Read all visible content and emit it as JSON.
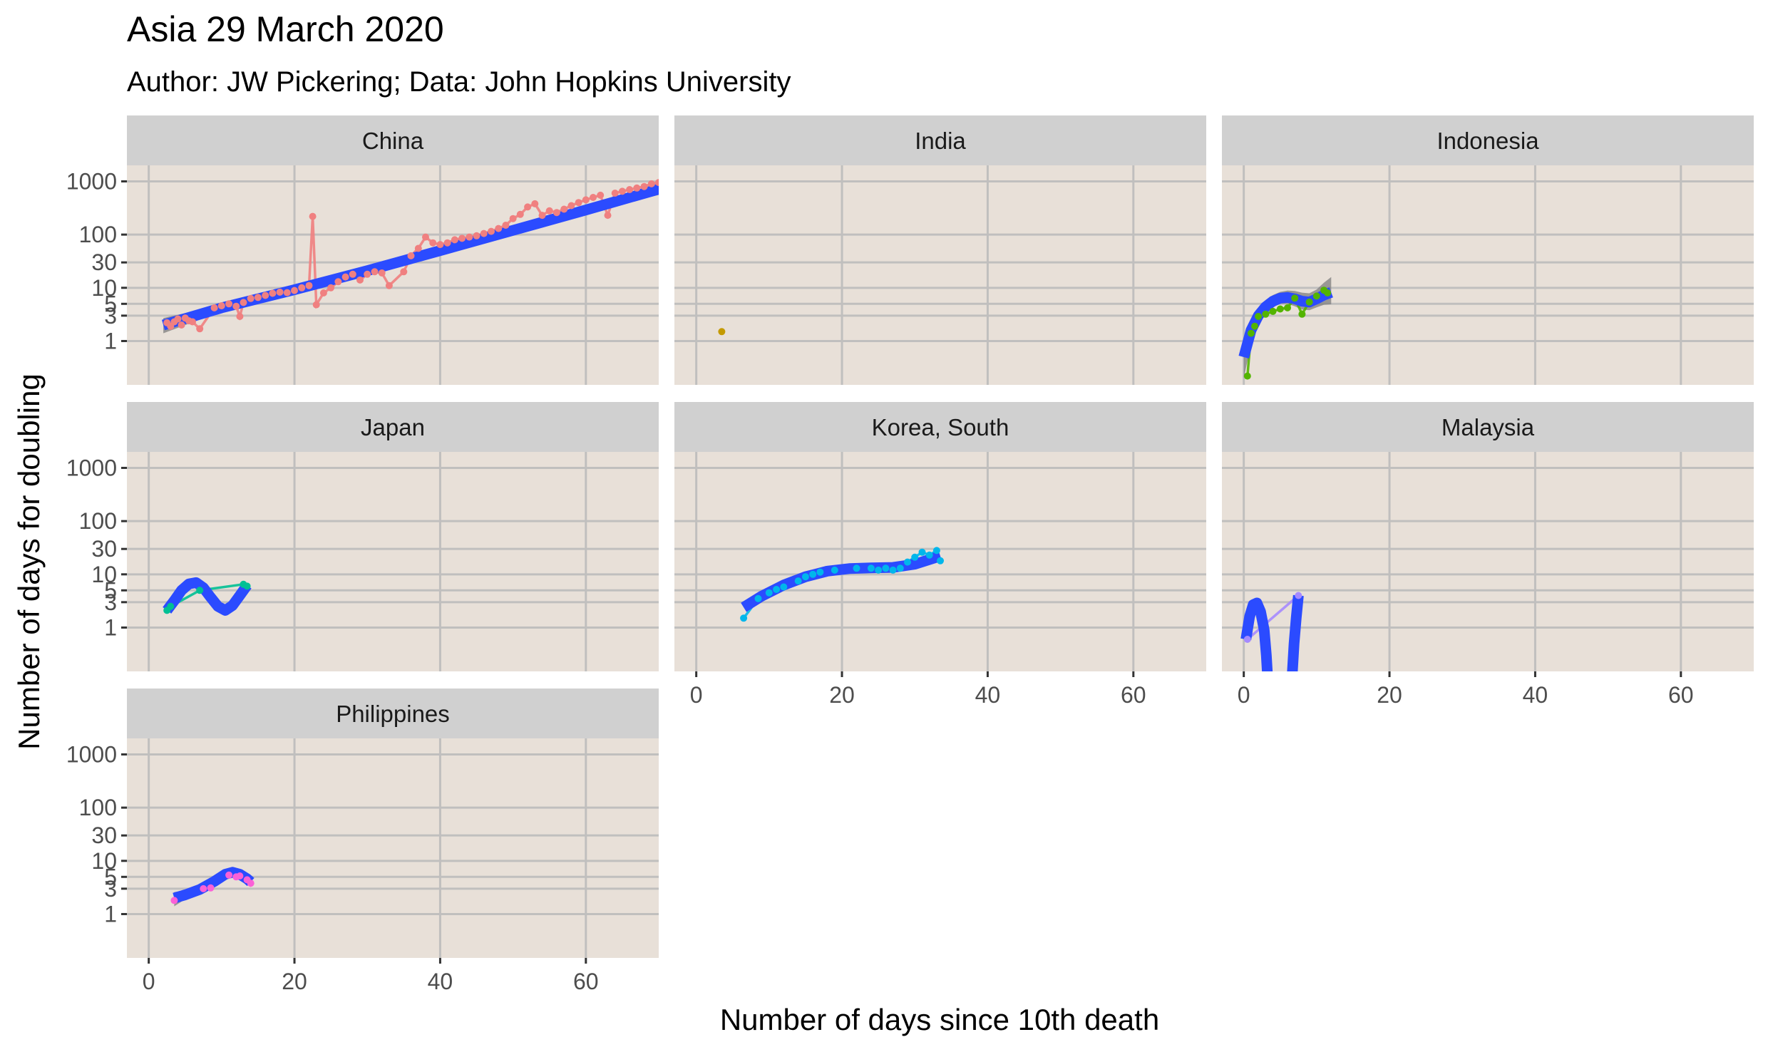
{
  "title": "Asia 29 March 2020",
  "subtitle": "Author: JW Pickering; Data: John Hopkins University",
  "colors": {
    "panel_bg": "#e8e0d8",
    "strip_bg": "#d0d0d0",
    "grid": "#c0bfbe",
    "smooth_line": "#2b4bff",
    "ribbon": "#7f7f7f"
  },
  "chart_data": {
    "type": "line",
    "title": "Asia 29 March 2020",
    "subtitle": "Author: JW Pickering; Data: John Hopkins University",
    "xlabel": "Number of days since 10th death",
    "ylabel": "Number of days for doubling",
    "xlim": [
      -3,
      70
    ],
    "ylim": [
      0.15,
      2000
    ],
    "y_scale": "log10",
    "x_ticks": [
      0,
      20,
      40,
      60
    ],
    "x_tick_labels": [
      "0",
      "20",
      "40",
      "60"
    ],
    "y_ticks": [
      1,
      3,
      5,
      10,
      30,
      100,
      1000
    ],
    "y_tick_labels": [
      "1",
      "3",
      "5",
      "10",
      "30",
      "100",
      "1000"
    ],
    "grid": true,
    "legend": "none",
    "facets": [
      {
        "name": "China",
        "color": "#f08080",
        "points": [
          [
            2.5,
            2.2
          ],
          [
            3,
            1.9
          ],
          [
            3.5,
            2.3
          ],
          [
            4,
            2.6
          ],
          [
            4.5,
            2.0
          ],
          [
            5,
            2.7
          ],
          [
            5.5,
            2.4
          ],
          [
            6,
            2.3
          ],
          [
            7,
            1.7
          ],
          [
            9,
            4.2
          ],
          [
            10,
            4.6
          ],
          [
            11,
            5.0
          ],
          [
            12,
            4.5
          ],
          [
            12.5,
            2.9
          ],
          [
            13,
            5.3
          ],
          [
            14,
            6.3
          ],
          [
            15,
            6.6
          ],
          [
            16,
            7.2
          ],
          [
            17,
            7.9
          ],
          [
            18,
            8.3
          ],
          [
            19,
            8.1
          ],
          [
            20,
            8.9
          ],
          [
            21,
            10
          ],
          [
            22,
            11
          ],
          [
            22.5,
            220
          ],
          [
            23,
            4.8
          ],
          [
            24,
            8.0
          ],
          [
            25,
            10
          ],
          [
            26,
            13
          ],
          [
            27,
            16
          ],
          [
            28,
            18
          ],
          [
            29,
            14
          ],
          [
            30,
            18
          ],
          [
            31,
            20
          ],
          [
            32,
            19
          ],
          [
            33,
            11
          ],
          [
            35,
            20
          ],
          [
            36,
            40
          ],
          [
            37,
            55
          ],
          [
            38,
            90
          ],
          [
            39,
            70
          ],
          [
            40,
            65
          ],
          [
            41,
            70
          ],
          [
            42,
            80
          ],
          [
            43,
            85
          ],
          [
            44,
            90
          ],
          [
            45,
            95
          ],
          [
            46,
            105
          ],
          [
            47,
            115
          ],
          [
            48,
            130
          ],
          [
            49,
            150
          ],
          [
            50,
            200
          ],
          [
            51,
            240
          ],
          [
            52,
            330
          ],
          [
            53,
            380
          ],
          [
            54,
            230
          ],
          [
            55,
            280
          ],
          [
            56,
            260
          ],
          [
            57,
            300
          ],
          [
            58,
            350
          ],
          [
            59,
            400
          ],
          [
            60,
            450
          ],
          [
            61,
            500
          ],
          [
            62,
            550
          ],
          [
            63,
            230
          ],
          [
            64,
            600
          ],
          [
            65,
            650
          ],
          [
            66,
            700
          ],
          [
            67,
            750
          ],
          [
            68,
            800
          ],
          [
            69,
            900
          ],
          [
            70,
            950
          ],
          [
            71,
            1000
          ]
        ],
        "fit": [
          [
            2,
            2.0
          ],
          [
            10,
            4.2
          ],
          [
            20,
            9.2
          ],
          [
            30,
            21
          ],
          [
            40,
            50
          ],
          [
            50,
            120
          ],
          [
            60,
            290
          ],
          [
            71,
            780
          ]
        ],
        "band": [
          [
            2,
            1.4,
            2.7
          ],
          [
            10,
            3.6,
            4.8
          ],
          [
            20,
            8.3,
            10.2
          ],
          [
            30,
            19,
            23
          ],
          [
            40,
            46,
            54
          ],
          [
            50,
            110,
            130
          ],
          [
            60,
            260,
            320
          ],
          [
            71,
            600,
            1050
          ]
        ]
      },
      {
        "name": "India",
        "color": "#c49a00",
        "points": [
          [
            3.5,
            1.5
          ]
        ],
        "fit": [],
        "band": []
      },
      {
        "name": "Indonesia",
        "color": "#53b400",
        "points": [
          [
            0.5,
            0.22
          ],
          [
            1,
            1.4
          ],
          [
            1.5,
            1.9
          ],
          [
            2,
            2.9
          ],
          [
            3,
            3.2
          ],
          [
            4,
            3.6
          ],
          [
            5,
            4.0
          ],
          [
            6,
            4.2
          ],
          [
            7,
            6.4
          ],
          [
            8,
            3.2
          ],
          [
            9,
            5.4
          ],
          [
            10,
            7.0
          ],
          [
            11,
            9.0
          ],
          [
            11.5,
            8.0
          ]
        ],
        "fit": [
          [
            0,
            0.5
          ],
          [
            1,
            1.6
          ],
          [
            2,
            3.0
          ],
          [
            3,
            4.4
          ],
          [
            4,
            5.6
          ],
          [
            5,
            6.4
          ],
          [
            6,
            6.6
          ],
          [
            7,
            6.2
          ],
          [
            8,
            5.6
          ],
          [
            9,
            5.4
          ],
          [
            10,
            6.2
          ],
          [
            11,
            7.3
          ],
          [
            12,
            8.2
          ]
        ],
        "band": [
          [
            0,
            0.2,
            1.1
          ],
          [
            1,
            0.9,
            2.6
          ],
          [
            2,
            2.1,
            4.1
          ],
          [
            3,
            3.3,
            5.9
          ],
          [
            4,
            4.3,
            7.3
          ],
          [
            5,
            5.0,
            8.4
          ],
          [
            6,
            5.0,
            8.9
          ],
          [
            7,
            4.5,
            8.7
          ],
          [
            8,
            3.9,
            8.1
          ],
          [
            9,
            3.8,
            7.9
          ],
          [
            10,
            4.3,
            9.3
          ],
          [
            11,
            4.8,
            12.5
          ],
          [
            12,
            4.9,
            16.0
          ]
        ]
      },
      {
        "name": "Japan",
        "color": "#00c094",
        "points": [
          [
            2.5,
            2.1
          ],
          [
            3,
            2.5
          ],
          [
            7,
            5.0
          ],
          [
            13,
            6.5
          ],
          [
            13.5,
            6.0
          ]
        ],
        "fit": [
          [
            2.5,
            2.1
          ],
          [
            3.5,
            3.2
          ],
          [
            4.5,
            5.0
          ],
          [
            5.5,
            6.6
          ],
          [
            6.5,
            7.0
          ],
          [
            7.5,
            5.6
          ],
          [
            8.5,
            3.7
          ],
          [
            9.5,
            2.5
          ],
          [
            10.5,
            2.1
          ],
          [
            11.5,
            2.6
          ],
          [
            12.5,
            4.0
          ],
          [
            13.5,
            6.2
          ]
        ],
        "band": []
      },
      {
        "name": "Korea, South",
        "color": "#00b6eb",
        "points": [
          [
            6.5,
            1.5
          ],
          [
            8.5,
            3.5
          ],
          [
            10,
            4.5
          ],
          [
            11,
            5.2
          ],
          [
            12,
            5.8
          ],
          [
            14,
            7.5
          ],
          [
            15,
            9.0
          ],
          [
            16,
            10
          ],
          [
            17,
            11
          ],
          [
            19,
            12
          ],
          [
            22,
            13
          ],
          [
            24,
            13
          ],
          [
            25,
            12
          ],
          [
            26,
            13
          ],
          [
            27,
            12
          ],
          [
            28,
            13
          ],
          [
            29,
            17
          ],
          [
            30,
            21
          ],
          [
            31,
            26
          ],
          [
            32,
            23
          ],
          [
            33,
            28
          ],
          [
            33.5,
            18
          ]
        ],
        "fit": [
          [
            6.5,
            2.4
          ],
          [
            9,
            3.9
          ],
          [
            12,
            6.3
          ],
          [
            15,
            9.0
          ],
          [
            18,
            11.5
          ],
          [
            21,
            12.8
          ],
          [
            24,
            13.2
          ],
          [
            27,
            13.5
          ],
          [
            30,
            15.5
          ],
          [
            33.5,
            22
          ]
        ],
        "band": []
      },
      {
        "name": "Malaysia",
        "color": "#a58aff",
        "points": [
          [
            0.5,
            0.6
          ],
          [
            7.5,
            4.0
          ]
        ],
        "fit": [
          [
            0.3,
            0.6
          ],
          [
            0.8,
            1.6
          ],
          [
            1.3,
            2.7
          ],
          [
            1.8,
            2.9
          ],
          [
            2.3,
            2.0
          ],
          [
            2.8,
            0.9
          ],
          [
            3.1,
            0.3
          ],
          [
            3.3,
            0.1
          ]
        ],
        "fit2": [
          [
            6.6,
            0.1
          ],
          [
            6.9,
            0.5
          ],
          [
            7.2,
            1.5
          ],
          [
            7.5,
            4.0
          ]
        ],
        "band": []
      },
      {
        "name": "Philippines",
        "color": "#fb61d7",
        "points": [
          [
            3.5,
            1.8
          ],
          [
            7.5,
            3.0
          ],
          [
            8.5,
            3.1
          ],
          [
            11,
            5.4
          ],
          [
            12,
            5.0
          ],
          [
            12.5,
            5.2
          ],
          [
            13.5,
            4.4
          ],
          [
            14,
            3.8
          ]
        ],
        "fit": [
          [
            3.5,
            2.0
          ],
          [
            5,
            2.3
          ],
          [
            7,
            2.9
          ],
          [
            9,
            4.1
          ],
          [
            10.5,
            5.6
          ],
          [
            11.5,
            6.1
          ],
          [
            12.5,
            5.6
          ],
          [
            13.5,
            4.6
          ],
          [
            14,
            4.0
          ]
        ],
        "band": [
          [
            3.5,
            1.4,
            2.6
          ],
          [
            5,
            1.9,
            2.7
          ],
          [
            7,
            2.5,
            3.3
          ],
          [
            9,
            3.6,
            4.6
          ],
          [
            10.5,
            5.0,
            6.3
          ],
          [
            11.5,
            5.4,
            7.0
          ],
          [
            12.5,
            4.8,
            6.5
          ],
          [
            13.5,
            3.8,
            5.6
          ],
          [
            14,
            3.2,
            5.1
          ]
        ]
      }
    ]
  }
}
